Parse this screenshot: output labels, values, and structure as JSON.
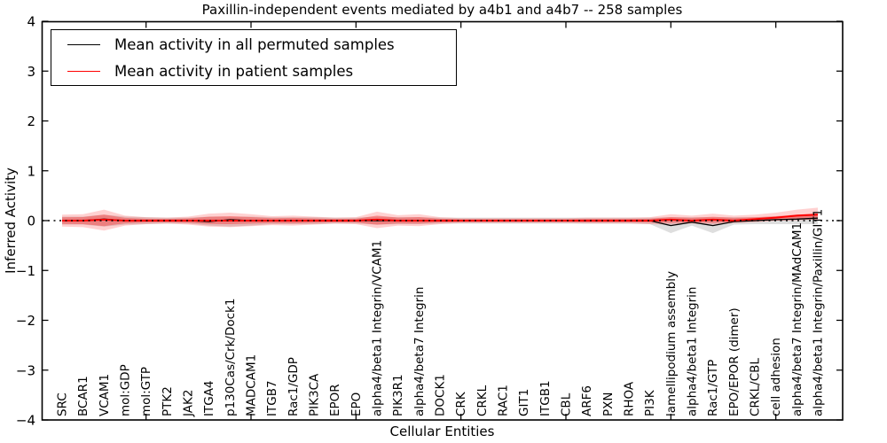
{
  "title": "Paxillin-independent events mediated by a4b1 and a4b7 -- 258 samples",
  "axes": {
    "xlabel": "Cellular Entities",
    "ylabel": "Inferred Activity",
    "ytick_values": [
      4,
      3,
      2,
      1,
      0,
      -1,
      -2,
      -3,
      -4
    ],
    "ytick_labels": [
      "4",
      "3",
      "2",
      "1",
      "0",
      "−1",
      "−2",
      "−3",
      "−4"
    ],
    "xtick_indices": [
      4,
      9,
      14,
      19,
      24,
      29,
      34
    ]
  },
  "legend": {
    "items": [
      {
        "label": "Mean activity in all permuted samples",
        "color": "#000000"
      },
      {
        "label": "Mean activity in patient samples",
        "color": "#ff0000"
      }
    ]
  },
  "colors": {
    "permuted_line": "#000000",
    "patient_line": "#ff0000",
    "permuted_band": "rgba(0,0,0,0.13)",
    "patient_band_outer": "rgba(255,0,0,0.18)",
    "patient_band_inner": "rgba(255,0,0,0.30)",
    "zero_line": "#000000",
    "frame": "#000000"
  },
  "chart_data": {
    "type": "line",
    "title": "Paxillin-independent events mediated by a4b1 and a4b7 -- 258 samples",
    "xlabel": "Cellular Entities",
    "ylabel": "Inferred Activity",
    "ylim": [
      -4,
      4
    ],
    "grid": false,
    "legend_position": "upper left",
    "zero_line": {
      "value": 0,
      "style": "dotted"
    },
    "categories": [
      "SRC",
      "BCAR1",
      "VCAM1",
      "mol:GDP",
      "mol:GTP",
      "PTK2",
      "JAK2",
      "ITGA4",
      "p130Cas/Crk/Dock1",
      "MADCAM1",
      "ITGB7",
      "Rac1/GDP",
      "PIK3CA",
      "EPOR",
      "EPO",
      "alpha4/beta1 Integrin/VCAM1",
      "PIK3R1",
      "alpha4/beta7 Integrin",
      "DOCK1",
      "CRK",
      "CRKL",
      "RAC1",
      "GIT1",
      "ITGB1",
      "CBL",
      "ARF6",
      "PXN",
      "RHOA",
      "PI3K",
      "lamellipodium assembly",
      "alpha4/beta1 Integrin",
      "Rac1/GTP",
      "EPO/EPOR (dimer)",
      "CRKL/CBL",
      "cell adhesion",
      "alpha4/beta7 Integrin/MAdCAM1",
      "alpha4/beta1 Integrin/Paxillin/GIT1"
    ],
    "series": [
      {
        "name": "Mean activity in all permuted samples",
        "color": "#000000",
        "values": [
          0,
          0,
          0.03,
          0,
          0,
          0,
          0,
          -0.02,
          0.02,
          0,
          0,
          0,
          0,
          0,
          0,
          0,
          0,
          0,
          0,
          0,
          0,
          0,
          0,
          0,
          0,
          0,
          0,
          0,
          0,
          -0.1,
          -0.03,
          -0.1,
          -0.02,
          0,
          0.02,
          0.03,
          0.05
        ]
      },
      {
        "name": "Mean activity in patient samples",
        "color": "#ff0000",
        "values": [
          0,
          0,
          0.02,
          0,
          0,
          0,
          0,
          0,
          0,
          0,
          0,
          0,
          0,
          0,
          0,
          0.02,
          0,
          0,
          0,
          0,
          0,
          0,
          0,
          0,
          0,
          0,
          0,
          0,
          0,
          0.02,
          0,
          0.02,
          0,
          0.03,
          0.06,
          0.1,
          0.12
        ]
      }
    ],
    "bands": [
      {
        "name": "permuted samples range",
        "upper": [
          0.08,
          0.08,
          0.12,
          0.08,
          0.07,
          0.06,
          0.06,
          0.08,
          0.08,
          0.08,
          0.07,
          0.07,
          0.07,
          0.06,
          0.06,
          0.08,
          0.07,
          0.07,
          0.06,
          0.06,
          0.06,
          0.06,
          0.06,
          0.06,
          0.06,
          0.06,
          0.06,
          0.06,
          0.06,
          0.07,
          0.07,
          0.07,
          0.07,
          0.07,
          0.08,
          0.1,
          0.12
        ],
        "lower": [
          -0.08,
          -0.08,
          -0.12,
          -0.08,
          -0.07,
          -0.06,
          -0.06,
          -0.1,
          -0.12,
          -0.1,
          -0.07,
          -0.07,
          -0.07,
          -0.06,
          -0.06,
          -0.08,
          -0.07,
          -0.07,
          -0.06,
          -0.06,
          -0.06,
          -0.06,
          -0.06,
          -0.06,
          -0.06,
          -0.06,
          -0.06,
          -0.06,
          -0.07,
          -0.25,
          -0.1,
          -0.25,
          -0.08,
          -0.07,
          -0.07,
          -0.07,
          -0.07
        ]
      },
      {
        "name": "patient samples range",
        "upper": [
          0.12,
          0.13,
          0.22,
          0.1,
          0.07,
          0.06,
          0.08,
          0.14,
          0.16,
          0.13,
          0.09,
          0.1,
          0.08,
          0.06,
          0.07,
          0.18,
          0.11,
          0.13,
          0.07,
          0.05,
          0.05,
          0.05,
          0.05,
          0.05,
          0.05,
          0.06,
          0.06,
          0.06,
          0.07,
          0.13,
          0.1,
          0.14,
          0.1,
          0.12,
          0.16,
          0.22,
          0.26
        ],
        "lower": [
          -0.12,
          -0.13,
          -0.2,
          -0.1,
          -0.07,
          -0.06,
          -0.08,
          -0.12,
          -0.13,
          -0.11,
          -0.09,
          -0.1,
          -0.08,
          -0.06,
          -0.07,
          -0.15,
          -0.1,
          -0.11,
          -0.07,
          -0.05,
          -0.05,
          -0.05,
          -0.05,
          -0.05,
          -0.05,
          -0.06,
          -0.06,
          -0.06,
          -0.07,
          -0.08,
          -0.06,
          -0.08,
          -0.05,
          -0.03,
          0.0,
          0.02,
          0.04
        ]
      }
    ]
  }
}
